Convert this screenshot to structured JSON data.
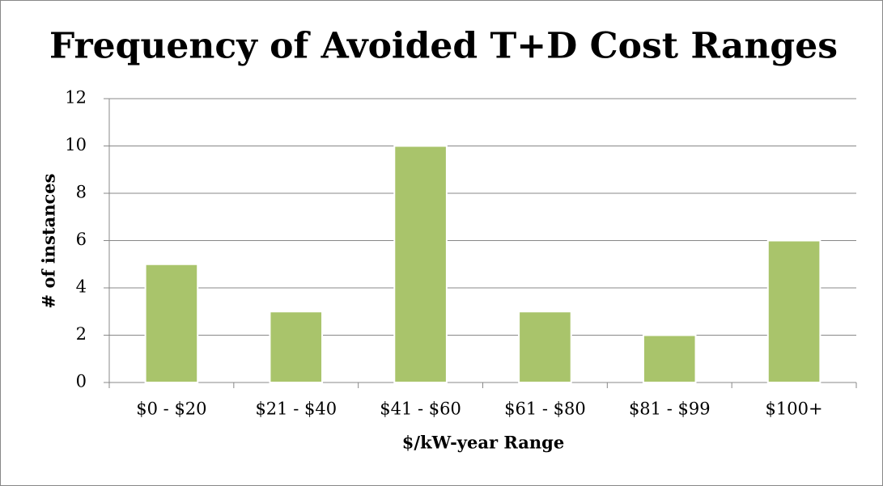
{
  "chart_data": {
    "type": "bar",
    "title": "Frequency of Avoided T+D Cost Ranges",
    "x_label": "$/kW-year Range",
    "y_label": "# of instances",
    "categories": [
      "$0 - $20",
      "$21 - $40",
      "$41 - $60",
      "$61 - $80",
      "$81 - $99",
      "$100+"
    ],
    "values": [
      5,
      3,
      10,
      3,
      2,
      6
    ],
    "color": "#a9c46b",
    "ylim": [
      0,
      12
    ],
    "yticks": [
      0,
      2,
      4,
      6,
      8,
      10,
      12
    ],
    "grid": true
  }
}
